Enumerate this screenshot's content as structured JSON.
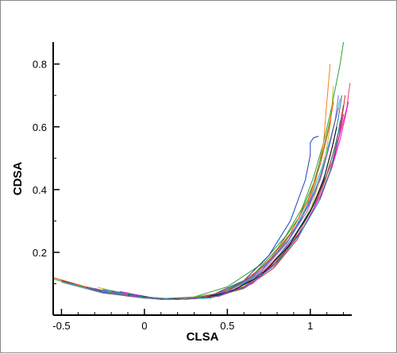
{
  "chart_data": {
    "type": "line",
    "title": "",
    "xlabel": "CLSA",
    "ylabel": "CDSA",
    "xlim": [
      -0.55,
      1.25
    ],
    "ylim": [
      0.0,
      0.87
    ],
    "xticks": [
      -0.5,
      0,
      0.5,
      1
    ],
    "xtick_labels": [
      "-0.5",
      "0",
      "0.5",
      "1"
    ],
    "yticks": [
      0.2,
      0.4,
      0.6,
      0.8
    ],
    "ytick_labels": [
      "0.2",
      "0.4",
      "0.6",
      "0.8"
    ],
    "grid": false,
    "legend": "none",
    "series": [
      {
        "color": "#2ca02c",
        "x": [
          -0.55,
          -0.3,
          -0.1,
          0.1,
          0.3,
          0.5,
          0.7,
          0.85,
          0.95,
          1.02,
          1.08,
          1.12,
          1.15,
          1.18,
          1.2
        ],
        "y": [
          0.115,
          0.08,
          0.06,
          0.052,
          0.058,
          0.09,
          0.16,
          0.25,
          0.34,
          0.44,
          0.55,
          0.64,
          0.72,
          0.8,
          0.87
        ]
      },
      {
        "color": "#1f3fbf",
        "x": [
          -0.5,
          -0.25,
          0,
          0.2,
          0.4,
          0.6,
          0.75,
          0.88,
          0.97,
          1.0,
          1.0,
          1.02,
          1.05
        ],
        "y": [
          0.11,
          0.072,
          0.055,
          0.05,
          0.062,
          0.11,
          0.19,
          0.3,
          0.43,
          0.51,
          0.55,
          0.565,
          0.57
        ]
      },
      {
        "color": "#e83e8c",
        "x": [
          -0.3,
          -0.1,
          0.1,
          0.3,
          0.5,
          0.7,
          0.88,
          1.0,
          1.08,
          1.14,
          1.18,
          1.22,
          1.24
        ],
        "y": [
          0.085,
          0.06,
          0.05,
          0.052,
          0.075,
          0.13,
          0.23,
          0.33,
          0.42,
          0.5,
          0.58,
          0.66,
          0.74
        ]
      },
      {
        "color": "#ff7f0e",
        "x": [
          -0.4,
          -0.15,
          0.05,
          0.25,
          0.45,
          0.65,
          0.82,
          0.95,
          1.03,
          1.08,
          1.1,
          1.12
        ],
        "y": [
          0.095,
          0.066,
          0.052,
          0.053,
          0.07,
          0.12,
          0.21,
          0.31,
          0.42,
          0.55,
          0.68,
          0.8
        ]
      },
      {
        "color": "#d62728",
        "x": [
          -0.25,
          0,
          0.2,
          0.4,
          0.6,
          0.78,
          0.92,
          1.02,
          1.09,
          1.14,
          1.18,
          1.2,
          1.21
        ],
        "y": [
          0.082,
          0.058,
          0.05,
          0.055,
          0.085,
          0.15,
          0.24,
          0.34,
          0.43,
          0.52,
          0.6,
          0.66,
          0.7
        ]
      },
      {
        "color": "#8c564b",
        "x": [
          -0.2,
          0,
          0.2,
          0.4,
          0.6,
          0.78,
          0.93,
          1.03,
          1.1,
          1.15,
          1.18,
          1.2
        ],
        "y": [
          0.075,
          0.056,
          0.05,
          0.056,
          0.09,
          0.16,
          0.26,
          0.36,
          0.45,
          0.54,
          0.61,
          0.67
        ]
      },
      {
        "color": "#17becf",
        "x": [
          -0.45,
          -0.2,
          0,
          0.2,
          0.4,
          0.6,
          0.77,
          0.9,
          1.0,
          1.07,
          1.12,
          1.16,
          1.18
        ],
        "y": [
          0.1,
          0.07,
          0.054,
          0.05,
          0.06,
          0.1,
          0.18,
          0.27,
          0.37,
          0.47,
          0.56,
          0.64,
          0.69
        ]
      },
      {
        "color": "#9467bd",
        "x": [
          -0.35,
          -0.1,
          0.1,
          0.3,
          0.5,
          0.7,
          0.86,
          0.98,
          1.06,
          1.11,
          1.15,
          1.17
        ],
        "y": [
          0.09,
          0.062,
          0.05,
          0.052,
          0.075,
          0.135,
          0.23,
          0.33,
          0.43,
          0.53,
          0.62,
          0.7
        ]
      },
      {
        "color": "#bcbd22",
        "x": [
          -0.28,
          -0.05,
          0.15,
          0.35,
          0.55,
          0.74,
          0.9,
          1.01,
          1.08,
          1.12,
          1.14
        ],
        "y": [
          0.088,
          0.06,
          0.05,
          0.054,
          0.08,
          0.14,
          0.24,
          0.35,
          0.47,
          0.6,
          0.73
        ]
      },
      {
        "color": "#ff00ff",
        "x": [
          -0.15,
          0.05,
          0.25,
          0.45,
          0.65,
          0.82,
          0.96,
          1.06,
          1.13,
          1.18,
          1.21,
          1.23
        ],
        "y": [
          0.075,
          0.055,
          0.05,
          0.06,
          0.1,
          0.18,
          0.28,
          0.38,
          0.47,
          0.56,
          0.63,
          0.68
        ]
      },
      {
        "color": "#7f7f7f",
        "x": [
          -0.5,
          -0.25,
          0,
          0.2,
          0.42,
          0.62,
          0.8,
          0.94,
          1.04,
          1.1,
          1.14,
          1.17
        ],
        "y": [
          0.105,
          0.07,
          0.054,
          0.05,
          0.062,
          0.11,
          0.2,
          0.3,
          0.41,
          0.51,
          0.6,
          0.66
        ]
      },
      {
        "color": "#1f77b4",
        "x": [
          -0.3,
          -0.05,
          0.15,
          0.35,
          0.55,
          0.75,
          0.9,
          1.02,
          1.09,
          1.14,
          1.17,
          1.19
        ],
        "y": [
          0.082,
          0.058,
          0.05,
          0.054,
          0.082,
          0.15,
          0.25,
          0.35,
          0.45,
          0.55,
          0.63,
          0.7
        ]
      },
      {
        "color": "#2ca02c",
        "x": [
          -0.4,
          -0.15,
          0.05,
          0.25,
          0.45,
          0.64,
          0.8,
          0.93,
          1.02,
          1.08,
          1.12
        ],
        "y": [
          0.095,
          0.066,
          0.052,
          0.052,
          0.068,
          0.12,
          0.21,
          0.31,
          0.42,
          0.53,
          0.62
        ]
      },
      {
        "color": "#c71585",
        "x": [
          -0.2,
          0,
          0.2,
          0.4,
          0.6,
          0.8,
          0.95,
          1.06,
          1.13,
          1.17,
          1.2
        ],
        "y": [
          0.078,
          0.057,
          0.05,
          0.057,
          0.09,
          0.17,
          0.27,
          0.37,
          0.47,
          0.56,
          0.64
        ]
      },
      {
        "color": "#000000",
        "x": [
          -0.1,
          0.1,
          0.3,
          0.5,
          0.7,
          0.87,
          1.0,
          1.08,
          1.13,
          1.16
        ],
        "y": [
          0.066,
          0.052,
          0.052,
          0.07,
          0.125,
          0.22,
          0.33,
          0.43,
          0.53,
          0.6
        ]
      },
      {
        "color": "#ff4500",
        "x": [
          -0.55,
          -0.3,
          -0.05,
          0.15,
          0.35,
          0.55,
          0.73,
          0.88,
          0.99,
          1.06,
          1.11,
          1.14
        ],
        "y": [
          0.12,
          0.082,
          0.058,
          0.05,
          0.055,
          0.09,
          0.16,
          0.26,
          0.37,
          0.48,
          0.59,
          0.68
        ]
      },
      {
        "color": "#00a3a3",
        "x": [
          -0.25,
          0,
          0.2,
          0.4,
          0.6,
          0.79,
          0.94,
          1.05,
          1.12,
          1.16,
          1.18
        ],
        "y": [
          0.082,
          0.058,
          0.05,
          0.055,
          0.087,
          0.16,
          0.26,
          0.36,
          0.46,
          0.55,
          0.62
        ]
      },
      {
        "color": "#6a5acd",
        "x": [
          -0.35,
          -0.1,
          0.1,
          0.3,
          0.5,
          0.7,
          0.87,
          0.99,
          1.07,
          1.12,
          1.16
        ],
        "y": [
          0.088,
          0.062,
          0.05,
          0.052,
          0.076,
          0.14,
          0.24,
          0.35,
          0.45,
          0.55,
          0.64
        ]
      }
    ]
  }
}
